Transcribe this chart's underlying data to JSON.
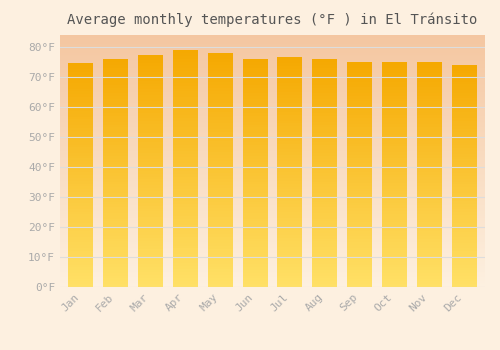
{
  "months": [
    "Jan",
    "Feb",
    "Mar",
    "Apr",
    "May",
    "Jun",
    "Jul",
    "Aug",
    "Sep",
    "Oct",
    "Nov",
    "Dec"
  ],
  "temperatures": [
    74.5,
    76.0,
    77.5,
    79.0,
    78.0,
    76.0,
    76.5,
    76.0,
    75.0,
    75.0,
    75.0,
    74.0
  ],
  "title": "Average monthly temperatures (°F ) in El Tránsito",
  "ylabel_ticks": [
    0,
    10,
    20,
    30,
    40,
    50,
    60,
    70,
    80
  ],
  "ylim": [
    0,
    84
  ],
  "bar_color_top": "#F5A800",
  "bar_color_bottom": "#FFE066",
  "bg_top_color": "#F4C6A0",
  "bg_bottom_color": "#FDF0E0",
  "grid_color": "#dddddd",
  "title_fontsize": 10,
  "tick_fontsize": 8,
  "tick_color": "#aaaaaa",
  "title_color": "#555555"
}
